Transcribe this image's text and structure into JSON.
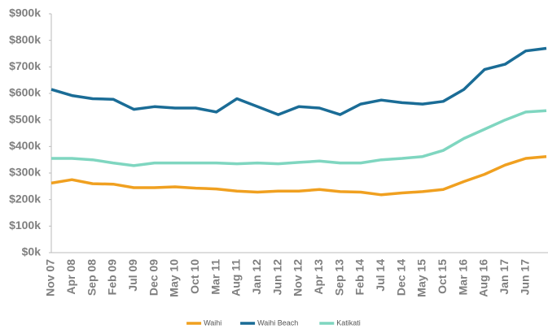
{
  "chart_data": {
    "type": "line",
    "categories": [
      "Nov 07",
      "Apr 08",
      "Sep 08",
      "Feb 09",
      "Jul 09",
      "Dec 09",
      "May 10",
      "Oct 10",
      "Mar 11",
      "Aug 11",
      "Jan 12",
      "Jun 12",
      "Nov 12",
      "Apr 13",
      "Sep 13",
      "Feb 14",
      "Jul 14",
      "Dec 14",
      "May 15",
      "Oct 15",
      "Mar 16",
      "Aug 16",
      "Jan 17",
      "Jun 17",
      null
    ],
    "series": [
      {
        "name": "Waihi",
        "color": "#f0a020",
        "values": [
          262000,
          275000,
          260000,
          258000,
          245000,
          245000,
          248000,
          243000,
          240000,
          232000,
          228000,
          232000,
          232000,
          238000,
          230000,
          228000,
          218000,
          225000,
          230000,
          238000,
          268000,
          295000,
          330000,
          355000,
          362000
        ]
      },
      {
        "name": "Waihi Beach",
        "color": "#1a6c96",
        "values": [
          615000,
          592000,
          580000,
          578000,
          540000,
          550000,
          545000,
          545000,
          530000,
          580000,
          550000,
          520000,
          550000,
          545000,
          520000,
          560000,
          575000,
          565000,
          560000,
          570000,
          615000,
          690000,
          710000,
          760000,
          770000
        ]
      },
      {
        "name": "Katikati",
        "color": "#7fd6c0",
        "values": [
          355000,
          355000,
          350000,
          338000,
          328000,
          338000,
          338000,
          338000,
          338000,
          335000,
          338000,
          335000,
          340000,
          345000,
          338000,
          338000,
          350000,
          355000,
          362000,
          385000,
          430000,
          465000,
          500000,
          530000,
          535000
        ]
      }
    ],
    "ylim": [
      0,
      900000
    ],
    "yticks": [
      {
        "value": 0,
        "label": "$0k"
      },
      {
        "value": 100000,
        "label": "$100k"
      },
      {
        "value": 200000,
        "label": "$200k"
      },
      {
        "value": 300000,
        "label": "$300k"
      },
      {
        "value": 400000,
        "label": "$400k"
      },
      {
        "value": 500000,
        "label": "$500k"
      },
      {
        "value": 600000,
        "label": "$600k"
      },
      {
        "value": 700000,
        "label": "$700k"
      },
      {
        "value": 800000,
        "label": "$800k"
      },
      {
        "value": 900000,
        "label": "$900k"
      }
    ],
    "grid": false,
    "legend": "bottom"
  }
}
